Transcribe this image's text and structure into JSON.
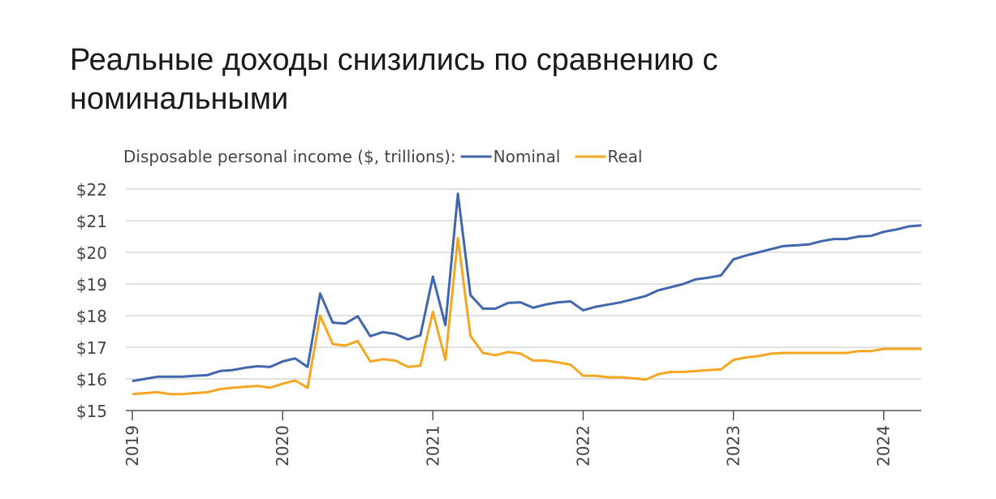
{
  "title": "Реальные доходы снизились по сравнению с номинальными",
  "colors": {
    "nominal": "#4066ad",
    "real": "#f5a623",
    "grid": "#d9d9d9",
    "axis": "#555555",
    "text": "#444444"
  },
  "chart_data": {
    "type": "line",
    "subtitle": "Disposable personal income ($, trillions):",
    "ylim": [
      15,
      22
    ],
    "y_ticks": [
      15,
      16,
      17,
      18,
      19,
      20,
      21,
      22
    ],
    "y_tick_labels": [
      "$15",
      "$16",
      "$17",
      "$18",
      "$19",
      "$20",
      "$21",
      "$22"
    ],
    "x_range": [
      "2019-01",
      "2024-04"
    ],
    "x_ticks": [
      "2019-01",
      "2020-01",
      "2021-01",
      "2022-01",
      "2023-01",
      "2024-01"
    ],
    "x_tick_labels": [
      "2019",
      "2020",
      "2021",
      "2022",
      "2023",
      "2024"
    ],
    "grid": "horizontal",
    "legend": "top",
    "x": [
      "2019-01",
      "2019-02",
      "2019-03",
      "2019-04",
      "2019-05",
      "2019-06",
      "2019-07",
      "2019-08",
      "2019-09",
      "2019-10",
      "2019-11",
      "2019-12",
      "2020-01",
      "2020-02",
      "2020-03",
      "2020-04",
      "2020-05",
      "2020-06",
      "2020-07",
      "2020-08",
      "2020-09",
      "2020-10",
      "2020-11",
      "2020-12",
      "2021-01",
      "2021-02",
      "2021-03",
      "2021-04",
      "2021-05",
      "2021-06",
      "2021-07",
      "2021-08",
      "2021-09",
      "2021-10",
      "2021-11",
      "2021-12",
      "2022-01",
      "2022-02",
      "2022-03",
      "2022-04",
      "2022-05",
      "2022-06",
      "2022-07",
      "2022-08",
      "2022-09",
      "2022-10",
      "2022-11",
      "2022-12",
      "2023-01",
      "2023-02",
      "2023-03",
      "2023-04",
      "2023-05",
      "2023-06",
      "2023-07",
      "2023-08",
      "2023-09",
      "2023-10",
      "2023-11",
      "2023-12",
      "2024-01",
      "2024-02",
      "2024-03",
      "2024-04"
    ],
    "series": [
      {
        "name": "Nominal",
        "color": "#4066ad",
        "values": [
          15.93,
          16.0,
          16.07,
          16.07,
          16.07,
          16.1,
          16.12,
          16.25,
          16.28,
          16.35,
          16.4,
          16.38,
          16.55,
          16.65,
          16.38,
          18.7,
          17.78,
          17.75,
          17.98,
          17.35,
          17.48,
          17.42,
          17.25,
          17.38,
          19.23,
          17.7,
          21.85,
          18.65,
          18.22,
          18.22,
          18.4,
          18.42,
          18.25,
          18.35,
          18.42,
          18.45,
          18.17,
          18.28,
          18.35,
          18.42,
          18.52,
          18.62,
          18.8,
          18.9,
          19.0,
          19.15,
          19.2,
          19.27,
          19.78,
          19.9,
          20.0,
          20.1,
          20.2,
          20.22,
          20.25,
          20.35,
          20.42,
          20.42,
          20.5,
          20.52,
          20.65,
          20.72,
          20.82,
          20.85
        ]
      },
      {
        "name": "Real",
        "color": "#f5a623",
        "values": [
          15.52,
          15.55,
          15.58,
          15.52,
          15.52,
          15.55,
          15.58,
          15.68,
          15.72,
          15.75,
          15.78,
          15.72,
          15.85,
          15.95,
          15.72,
          18.0,
          17.1,
          17.05,
          17.2,
          16.55,
          16.62,
          16.58,
          16.38,
          16.42,
          18.12,
          16.6,
          20.45,
          17.35,
          16.82,
          16.75,
          16.85,
          16.8,
          16.58,
          16.58,
          16.52,
          16.45,
          16.1,
          16.1,
          16.05,
          16.05,
          16.02,
          15.98,
          16.15,
          16.22,
          16.22,
          16.25,
          16.28,
          16.3,
          16.6,
          16.68,
          16.72,
          16.8,
          16.82,
          16.82,
          16.82,
          16.82,
          16.82,
          16.82,
          16.88,
          16.88,
          16.95,
          16.95,
          16.95,
          16.95
        ]
      }
    ]
  }
}
